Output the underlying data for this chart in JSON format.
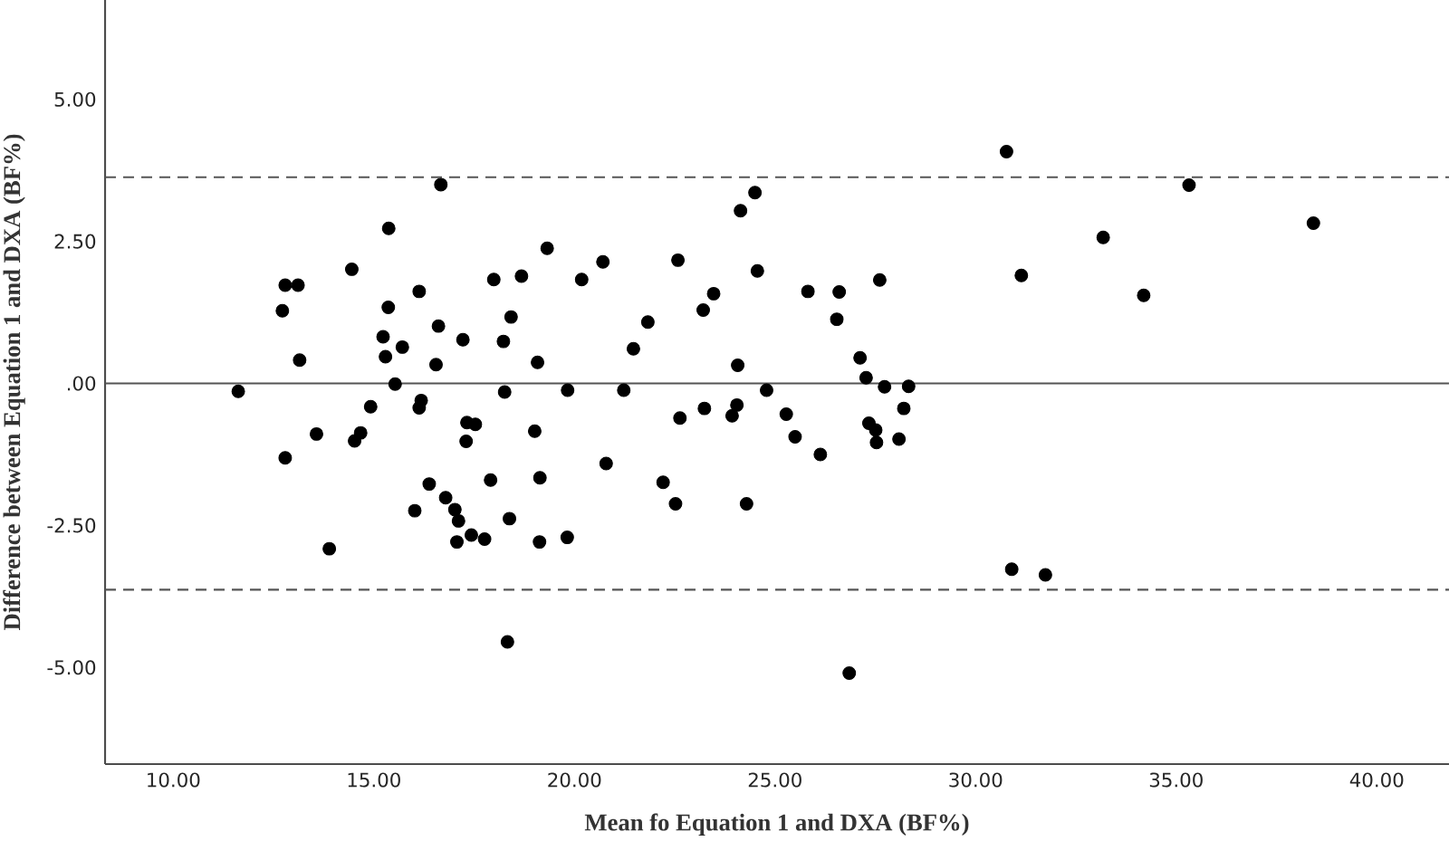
{
  "chart_data": {
    "type": "scatter",
    "xlabel": "Mean fo Equation 1 and DXA (BF%)",
    "ylabel": "Difference between Equation 1 and DXA (BF%)",
    "xlim": [
      8.3,
      41.8
    ],
    "ylim": [
      -6.7,
      6.75
    ],
    "xticks": [
      {
        "value": 10,
        "label": "10.00"
      },
      {
        "value": 15,
        "label": "15.00"
      },
      {
        "value": 20,
        "label": "20.00"
      },
      {
        "value": 25,
        "label": "25.00"
      },
      {
        "value": 30,
        "label": "30.00"
      },
      {
        "value": 35,
        "label": "35.00"
      },
      {
        "value": 40,
        "label": "40.00"
      }
    ],
    "yticks": [
      {
        "value": -5,
        "label": "-5.00"
      },
      {
        "value": -2.5,
        "label": "-2.50"
      },
      {
        "value": 0,
        "label": ".00"
      },
      {
        "value": 2.5,
        "label": "2.50"
      },
      {
        "value": 5,
        "label": "5.00"
      }
    ],
    "marker": "circle",
    "ref_lines": [
      {
        "axis": "y",
        "value": 3.63,
        "label": null,
        "color": "#555555",
        "line_style": "dashed"
      },
      {
        "axis": "y",
        "value": 0,
        "label": null,
        "color": "#555555",
        "line_style": "solid"
      },
      {
        "axis": "y",
        "value": -3.63,
        "label": null,
        "color": "#555555",
        "line_style": "dashed"
      }
    ],
    "series": [
      {
        "color": "#000000",
        "x": [
          15.37,
          14.45,
          12.79,
          13.11,
          12.72,
          16.13,
          15.36,
          17.99,
          18.68,
          16.61,
          17.22,
          18.42,
          18.23,
          15.23,
          15.71,
          15.29,
          16.55,
          13.15,
          19.08,
          15.53,
          11.62,
          18.26,
          16.18,
          16.13,
          14.92,
          13.57,
          14.67,
          14.52,
          17.32,
          17.53,
          17.3,
          19.01,
          12.79,
          17.91,
          19.14,
          16.38,
          16.79,
          16.02,
          17.02,
          17.11,
          18.38,
          17.43,
          17.76,
          17.07,
          19.13,
          13.89,
          18.33,
          19.32,
          20.18,
          20.71,
          22.58,
          24.56,
          21.83,
          23.21,
          23.47,
          25.82,
          26.6,
          27.61,
          26.54,
          21.47,
          24.07,
          27.12,
          27.27,
          27.73,
          28.33,
          19.83,
          21.23,
          24.79,
          22.63,
          23.24,
          24.05,
          23.93,
          25.28,
          25.5,
          26.13,
          27.34,
          27.51,
          27.53,
          28.09,
          28.21,
          20.79,
          22.21,
          22.52,
          24.29,
          19.82,
          26.85,
          30.77,
          35.32,
          38.42,
          33.18,
          31.14,
          34.19,
          30.9,
          31.74,
          16.67,
          24.14,
          24.5
        ],
        "values": [
          2.73,
          2.01,
          1.73,
          1.73,
          1.28,
          1.62,
          1.34,
          1.83,
          1.89,
          1.01,
          0.77,
          1.17,
          0.74,
          0.82,
          0.64,
          0.47,
          0.33,
          0.41,
          0.37,
          -0.01,
          -0.14,
          -0.15,
          -0.3,
          -0.43,
          -0.41,
          -0.89,
          -0.87,
          -1.01,
          -0.69,
          -0.72,
          -1.02,
          -0.84,
          -1.31,
          -1.7,
          -1.66,
          -1.77,
          -2.01,
          -2.24,
          -2.22,
          -2.42,
          -2.38,
          -2.67,
          -2.74,
          -2.79,
          -2.79,
          -2.91,
          -4.55,
          2.38,
          1.83,
          2.14,
          2.17,
          1.98,
          1.08,
          1.29,
          1.58,
          1.62,
          1.61,
          1.82,
          1.13,
          0.61,
          0.32,
          0.45,
          0.1,
          -0.06,
          -0.05,
          -0.12,
          -0.12,
          -0.12,
          -0.61,
          -0.44,
          -0.38,
          -0.57,
          -0.54,
          -0.94,
          -1.25,
          -0.7,
          -0.82,
          -1.04,
          -0.98,
          -0.44,
          -1.41,
          -1.74,
          -2.12,
          -2.12,
          -2.71,
          -5.1,
          4.08,
          3.49,
          2.82,
          2.57,
          1.9,
          1.55,
          -3.27,
          -3.37,
          3.5,
          3.04,
          3.36
        ]
      }
    ]
  }
}
